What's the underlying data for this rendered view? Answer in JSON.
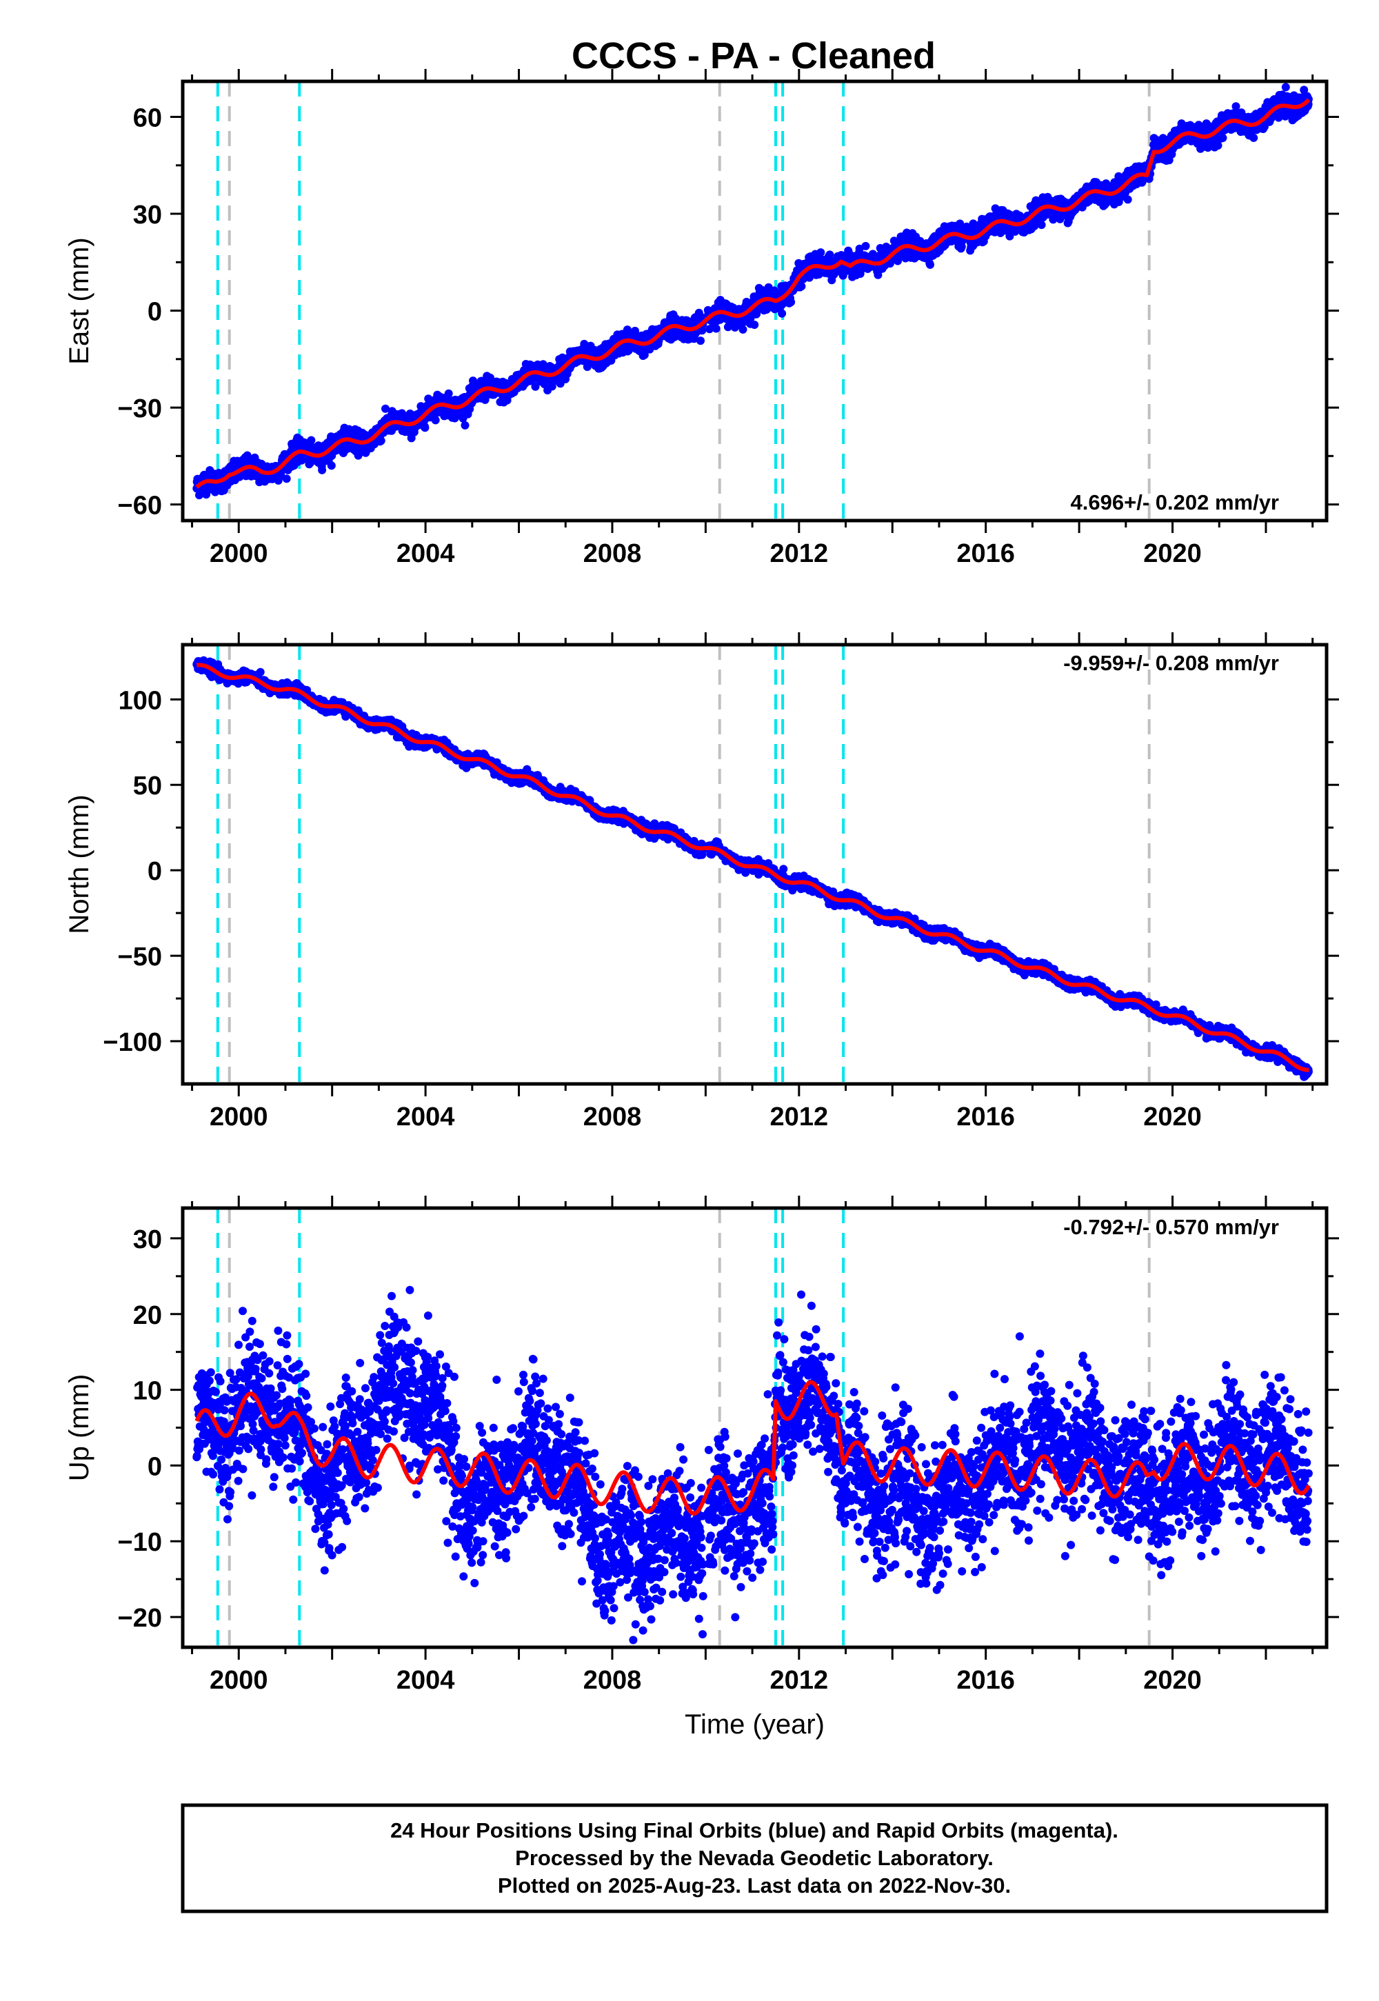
{
  "figure": {
    "title": "CCCS  - PA - Cleaned",
    "footer_lines": [
      "24 Hour Positions Using Final Orbits (blue) and Rapid Orbits (magenta).",
      "Processed by the Nevada Geodetic Laboratory.",
      "Plotted on 2025-Aug-23. Last data on 2022-Nov-30."
    ]
  },
  "colors": {
    "data_points": "#0000ff",
    "model_fit": "#ff0000",
    "equipment_change": "#00e5ee",
    "earthquake_event": "#c0c0c0",
    "axes": "#000000"
  },
  "chart_data": [
    {
      "type": "scatter",
      "component": "East",
      "ylabel": "East (mm)",
      "xlabel": "",
      "xlim": [
        1998.8,
        2023.3
      ],
      "ylim": [
        -65,
        71
      ],
      "x_ticks": [
        2000,
        2004,
        2008,
        2012,
        2016,
        2020
      ],
      "y_ticks": [
        -60,
        -30,
        0,
        30,
        60
      ],
      "rate_text": "4.696+/- 0.202 mm/yr",
      "rate_mm_yr": 4.696,
      "rate_sigma": 0.202,
      "data_start": 1999.1,
      "data_end": 2022.92,
      "noise_mm": 1.6,
      "seasonal_amp_mm": 1.6,
      "anchor_points": [
        [
          1999.1,
          -55.5
        ],
        [
          1999.5,
          -53
        ],
        [
          1999.8,
          -49.5
        ],
        [
          2000.5,
          -50
        ],
        [
          2001.3,
          -45
        ],
        [
          2002.5,
          -40.5
        ],
        [
          2004.0,
          -32
        ],
        [
          2006.0,
          -22
        ],
        [
          2008.0,
          -12
        ],
        [
          2010.0,
          -3
        ],
        [
          2011.5,
          3
        ],
        [
          2012.0,
          10.5
        ],
        [
          2012.9,
          16
        ],
        [
          2013.1,
          13
        ],
        [
          2014.0,
          17.5
        ],
        [
          2016.0,
          25
        ],
        [
          2018.0,
          34
        ],
        [
          2019.45,
          41.5
        ],
        [
          2019.6,
          50
        ],
        [
          2020.5,
          54.5
        ],
        [
          2022.0,
          60
        ],
        [
          2022.92,
          66
        ]
      ],
      "series": [
        {
          "name": "24 Hour Positions (Final Orbits)",
          "style": "points"
        },
        {
          "name": "Model fit",
          "style": "line"
        }
      ]
    },
    {
      "type": "scatter",
      "component": "North",
      "ylabel": "North (mm)",
      "xlabel": "",
      "xlim": [
        1998.8,
        2023.3
      ],
      "ylim": [
        -125,
        132
      ],
      "x_ticks": [
        2000,
        2004,
        2008,
        2012,
        2016,
        2020
      ],
      "y_ticks": [
        -100,
        -50,
        0,
        50,
        100
      ],
      "rate_text": "-9.959+/- 0.208 mm/yr",
      "rate_mm_yr": -9.959,
      "rate_sigma": 0.208,
      "data_start": 1999.1,
      "data_end": 2022.92,
      "noise_mm": 1.6,
      "seasonal_amp_mm": 2.0,
      "anchor_points": [
        [
          1999.1,
          119
        ],
        [
          2000.0,
          113
        ],
        [
          2001.0,
          106
        ],
        [
          2002.0,
          96
        ],
        [
          2004.0,
          75
        ],
        [
          2006.0,
          55
        ],
        [
          2008.0,
          32
        ],
        [
          2010.0,
          13
        ],
        [
          2011.5,
          -3
        ],
        [
          2012.0,
          -7
        ],
        [
          2014.0,
          -28
        ],
        [
          2016.0,
          -47
        ],
        [
          2018.0,
          -67
        ],
        [
          2019.45,
          -80
        ],
        [
          2020.0,
          -85
        ],
        [
          2022.0,
          -106
        ],
        [
          2022.92,
          -116
        ]
      ],
      "series": [
        {
          "name": "24 Hour Positions (Final Orbits)",
          "style": "points"
        },
        {
          "name": "Model fit",
          "style": "line"
        }
      ]
    },
    {
      "type": "scatter",
      "component": "Up",
      "ylabel": "Up (mm)",
      "xlabel": "Time (year)",
      "xlim": [
        1998.8,
        2023.3
      ],
      "ylim": [
        -24,
        34
      ],
      "x_ticks": [
        2000,
        2004,
        2008,
        2012,
        2016,
        2020
      ],
      "y_ticks": [
        -20,
        -10,
        0,
        10,
        20,
        30
      ],
      "rate_text": "-0.792+/- 0.570 mm/yr",
      "rate_mm_yr": -0.792,
      "rate_sigma": 0.57,
      "data_start": 1999.1,
      "data_end": 2022.92,
      "noise_mm": 4.2,
      "seasonal_amp_mm": 2.6,
      "model_anchor_points": [
        [
          1999.1,
          4.5
        ],
        [
          2000.0,
          7
        ],
        [
          2000.8,
          7.5
        ],
        [
          2001.3,
          4
        ],
        [
          2002.0,
          1.5
        ],
        [
          2003.0,
          0.5
        ],
        [
          2004.0,
          0
        ],
        [
          2005.0,
          -0.5
        ],
        [
          2006.0,
          -1.5
        ],
        [
          2007.0,
          -2
        ],
        [
          2008.0,
          -3
        ],
        [
          2009.0,
          -4
        ],
        [
          2010.0,
          -4
        ],
        [
          2011.0,
          -3.5
        ],
        [
          2011.45,
          -2.5
        ],
        [
          2011.5,
          8.5
        ],
        [
          2012.0,
          8.5
        ],
        [
          2012.8,
          9
        ],
        [
          2012.95,
          1
        ],
        [
          2014.0,
          0
        ],
        [
          2016.0,
          -0.5
        ],
        [
          2018.0,
          -1.5
        ],
        [
          2019.45,
          -2
        ],
        [
          2019.6,
          0.5
        ],
        [
          2021.0,
          0.5
        ],
        [
          2022.92,
          -1.5
        ]
      ],
      "data_anchor_points": [
        [
          1999.1,
          4
        ],
        [
          2000.0,
          7
        ],
        [
          2000.8,
          9
        ],
        [
          2001.3,
          3
        ],
        [
          2002.0,
          -3
        ],
        [
          2003.0,
          8
        ],
        [
          2003.6,
          11
        ],
        [
          2004.3,
          5
        ],
        [
          2005.0,
          -7
        ],
        [
          2006.0,
          0
        ],
        [
          2006.6,
          3
        ],
        [
          2007.5,
          -6
        ],
        [
          2008.0,
          -12
        ],
        [
          2009.0,
          -10
        ],
        [
          2010.0,
          -8
        ],
        [
          2011.0,
          -5
        ],
        [
          2011.45,
          -4
        ],
        [
          2011.5,
          9
        ],
        [
          2012.0,
          8
        ],
        [
          2012.8,
          7
        ],
        [
          2012.95,
          -1
        ],
        [
          2014.0,
          -4
        ],
        [
          2015.0,
          -6
        ],
        [
          2016.0,
          -2
        ],
        [
          2017.0,
          3
        ],
        [
          2018.0,
          2
        ],
        [
          2019.0,
          -2
        ],
        [
          2020.0,
          -3
        ],
        [
          2021.0,
          1
        ],
        [
          2022.0,
          2
        ],
        [
          2022.92,
          -1
        ]
      ],
      "series": [
        {
          "name": "24 Hour Positions (Final Orbits)",
          "style": "points"
        },
        {
          "name": "Model fit",
          "style": "line"
        }
      ]
    }
  ],
  "event_lines": {
    "equipment_change_years": [
      1999.55,
      2001.3,
      2011.5,
      2011.65,
      2012.95
    ],
    "earthquake_years": [
      1999.8,
      2010.3,
      2019.5
    ]
  }
}
